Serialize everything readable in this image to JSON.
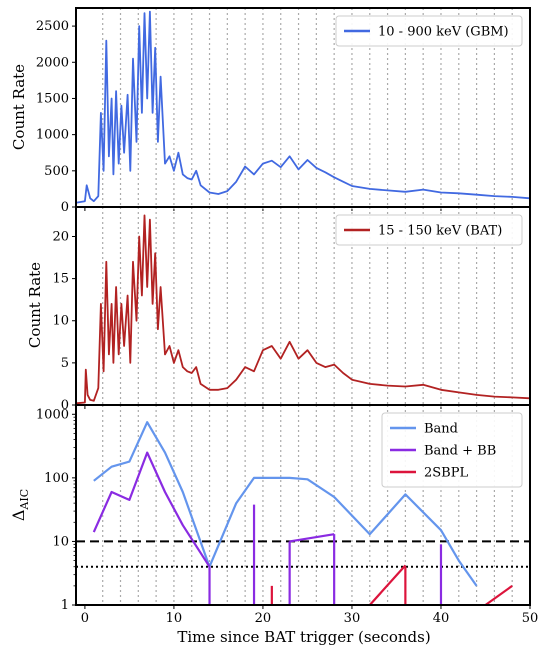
{
  "chart_data": [
    {
      "type": "line",
      "ylabel": "Count Rate",
      "xlim": [
        -1,
        50
      ],
      "ylim": [
        0,
        2750
      ],
      "yticks": [
        0,
        500,
        1000,
        1500,
        2000,
        2500
      ],
      "legend": "top-right",
      "series": [
        {
          "name": "10 - 900 keV (GBM)",
          "color": "#4169E1",
          "x": [
            -1,
            0,
            0.2,
            0.6,
            1,
            1.5,
            1.8,
            2.1,
            2.4,
            2.7,
            3,
            3.2,
            3.5,
            3.8,
            4.1,
            4.4,
            4.8,
            5.1,
            5.4,
            5.8,
            6.1,
            6.4,
            6.7,
            7,
            7.3,
            7.6,
            7.9,
            8.2,
            8.5,
            9,
            9.5,
            10,
            10.5,
            11,
            11.5,
            12,
            12.5,
            13,
            14,
            15,
            16,
            17,
            18,
            19,
            20,
            21,
            22,
            23,
            24,
            25,
            26,
            27,
            28,
            29,
            30,
            32,
            34,
            36,
            38,
            40,
            42,
            44,
            46,
            48,
            50
          ],
          "values": [
            60,
            80,
            300,
            120,
            80,
            150,
            1300,
            500,
            2300,
            700,
            1500,
            450,
            1600,
            600,
            1400,
            750,
            1550,
            500,
            2050,
            900,
            2500,
            1300,
            2680,
            1500,
            2700,
            1300,
            2200,
            900,
            1800,
            600,
            700,
            500,
            750,
            450,
            400,
            380,
            500,
            300,
            200,
            180,
            220,
            350,
            560,
            450,
            600,
            640,
            550,
            700,
            520,
            650,
            540,
            480,
            410,
            350,
            290,
            250,
            230,
            210,
            240,
            200,
            190,
            170,
            150,
            140,
            120
          ]
        }
      ]
    },
    {
      "type": "line",
      "ylabel": "Count Rate",
      "xlim": [
        -1,
        50
      ],
      "ylim": [
        0,
        23.5
      ],
      "yticks": [
        0,
        5,
        10,
        15,
        20
      ],
      "legend": "top-right",
      "series": [
        {
          "name": "15 - 150 keV (BAT)",
          "color": "#B22222",
          "x": [
            -1,
            0,
            0.1,
            0.3,
            0.6,
            1,
            1.5,
            1.8,
            2.1,
            2.4,
            2.7,
            3,
            3.2,
            3.5,
            3.8,
            4.1,
            4.4,
            4.8,
            5.1,
            5.4,
            5.8,
            6.1,
            6.4,
            6.7,
            7,
            7.3,
            7.6,
            7.9,
            8.2,
            8.5,
            9,
            9.5,
            10,
            10.5,
            11,
            11.5,
            12,
            12.5,
            13,
            14,
            15,
            16,
            17,
            18,
            19,
            20,
            21,
            22,
            23,
            24,
            25,
            26,
            27,
            28,
            29,
            30,
            32,
            34,
            36,
            38,
            40,
            42,
            44,
            46,
            48,
            50
          ],
          "values": [
            0.2,
            0.3,
            4.2,
            1.2,
            0.6,
            0.5,
            2,
            12,
            4,
            17,
            6,
            12,
            5,
            14,
            6,
            12,
            7,
            13,
            5,
            17,
            10,
            20,
            13,
            22.5,
            14,
            22,
            12,
            18,
            9,
            14,
            6,
            7,
            5,
            6.5,
            4.5,
            4,
            3.8,
            4.5,
            2.5,
            1.8,
            1.8,
            2,
            3,
            4.5,
            4,
            6.5,
            7,
            5.5,
            7.5,
            5.5,
            6.5,
            5,
            4.5,
            4.8,
            3.8,
            3,
            2.5,
            2.3,
            2.2,
            2.4,
            1.8,
            1.5,
            1.2,
            1,
            0.9,
            0.8
          ]
        }
      ]
    },
    {
      "type": "line",
      "ylabel": "ΔAIC",
      "xlabel": "Time since BAT trigger (seconds)",
      "xlim": [
        -1,
        50
      ],
      "xticks": [
        0,
        10,
        20,
        30,
        40,
        50
      ],
      "ylim": [
        1,
        1400
      ],
      "yscale": "log",
      "yticks": [
        1,
        10,
        100,
        1000
      ],
      "legend": "top-right",
      "hlines": [
        {
          "y": 10,
          "style": "dashed"
        },
        {
          "y": 4,
          "style": "dotted"
        }
      ],
      "series": [
        {
          "name": "Band",
          "color": "#6495ED",
          "x": [
            1,
            3,
            5,
            7,
            9,
            11,
            14,
            17,
            19,
            21,
            23,
            25,
            28,
            32,
            36,
            40,
            42,
            44
          ],
          "values": [
            90,
            150,
            180,
            750,
            250,
            60,
            4,
            40,
            100,
            100,
            100,
            95,
            50,
            13,
            55,
            15,
            5,
            2
          ]
        },
        {
          "name": "Band + BB",
          "color": "#8A2BE2",
          "x": [
            1,
            3,
            5,
            7,
            9,
            11,
            14
          ],
          "values": [
            14,
            60,
            45,
            250,
            60,
            18,
            4
          ],
          "spikes": [
            {
              "x": 14,
              "top": 4
            },
            {
              "x": 19,
              "top": 38
            },
            {
              "x": 23,
              "top": 10
            },
            {
              "x": 28,
              "top": 13
            },
            {
              "x": 40,
              "top": 9
            }
          ],
          "extra_segments": [
            {
              "x": [
                23,
                28
              ],
              "values": [
                10,
                13
              ]
            }
          ]
        },
        {
          "name": "2SBPL",
          "color": "#DC143C",
          "spikes": [
            {
              "x": 21,
              "top": 2
            },
            {
              "x": 36,
              "top": 4
            }
          ],
          "extra_segments": [
            {
              "x": [
                32,
                36
              ],
              "values": [
                1,
                4.2
              ]
            },
            {
              "x": [
                45,
                48
              ],
              "values": [
                1,
                2
              ]
            }
          ]
        }
      ]
    }
  ],
  "vlines_x": [
    2,
    4,
    6,
    8,
    10,
    12,
    14,
    16,
    18,
    20,
    22,
    24,
    26,
    28,
    30,
    32,
    34,
    36,
    38,
    40,
    42,
    44,
    46,
    48
  ]
}
